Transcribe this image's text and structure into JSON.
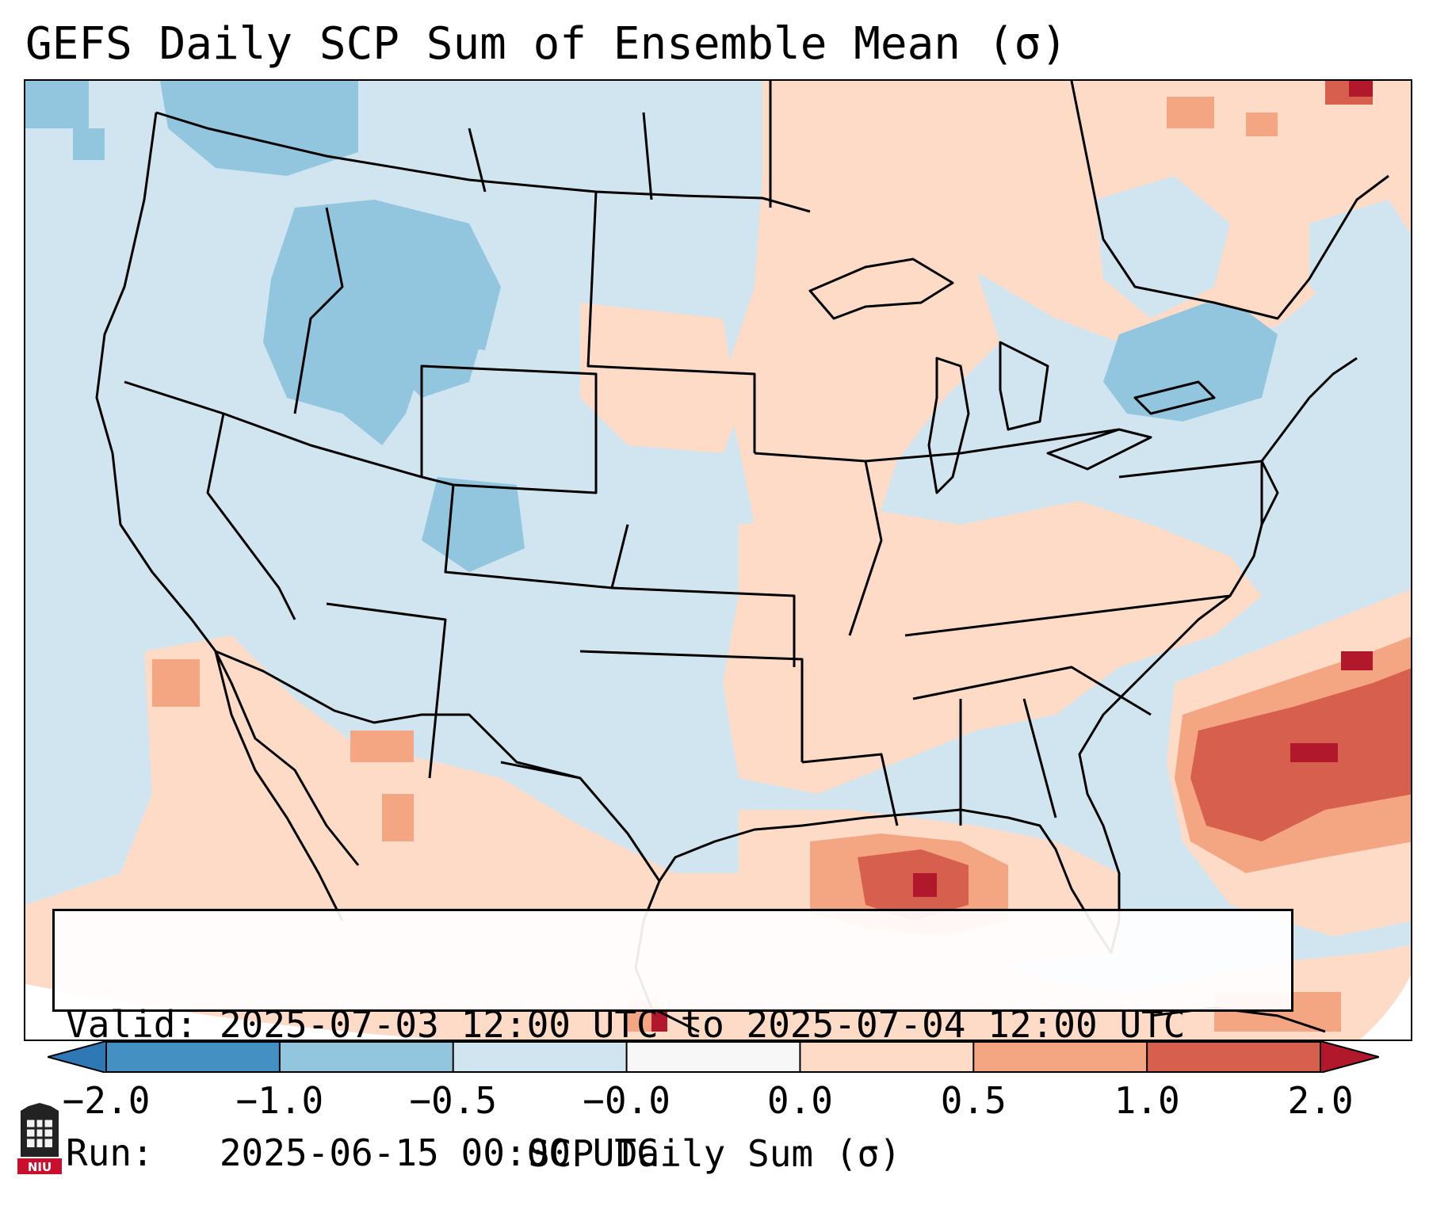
{
  "title": "GEFS Daily SCP Sum of Ensemble Mean (σ)",
  "info": {
    "valid": "Valid: 2025-07-03 12:00 UTC to 2025-07-04 12:00 UTC",
    "run": "Run:   2025-06-15 00:00 UTC"
  },
  "colorbar": {
    "label": "SCP Daily Sum (σ)",
    "ticks": [
      "−2.0",
      "−1.0",
      "−0.5",
      "−0.0",
      "0.0",
      "0.5",
      "1.0",
      "2.0"
    ],
    "bins": [
      {
        "color": "#2f78b6"
      },
      {
        "color": "#4590c3"
      },
      {
        "color": "#92c5de"
      },
      {
        "color": "#d1e5f0"
      },
      {
        "color": "#f7f7f7"
      },
      {
        "color": "#fddbc7"
      },
      {
        "color": "#f4a582"
      },
      {
        "color": "#d6604d"
      },
      {
        "color": "#b2182b"
      }
    ]
  },
  "colors": {
    "ocean_background": "#cfe4f0",
    "border": "#000000"
  },
  "logo": {
    "text": "NIU",
    "color": "#c8102e"
  }
}
